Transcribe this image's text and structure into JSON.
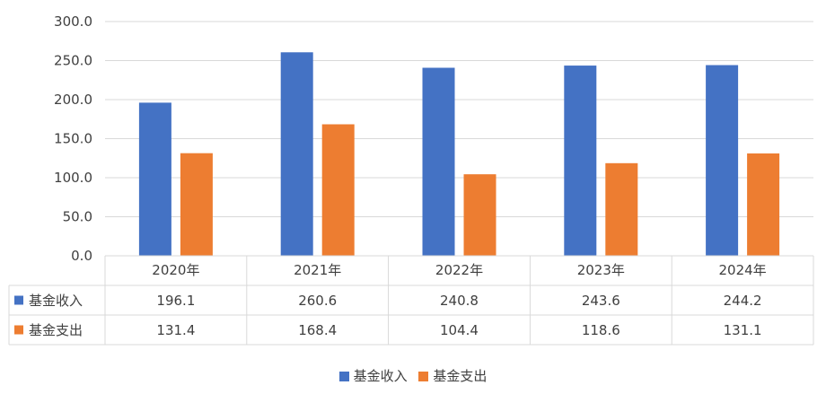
{
  "chart_data": {
    "type": "bar",
    "categories": [
      "2020年",
      "2021年",
      "2022年",
      "2023年",
      "2024年"
    ],
    "series": [
      {
        "name": "基金收入",
        "values": [
          196.1,
          260.6,
          240.8,
          243.6,
          244.2
        ],
        "color": "#4472C4"
      },
      {
        "name": "基金支出",
        "values": [
          131.4,
          168.4,
          104.4,
          118.6,
          131.1
        ],
        "color": "#ED7D31"
      }
    ],
    "ylim": [
      0,
      300
    ],
    "yticks": [
      "0.0",
      "50.0",
      "100.0",
      "150.0",
      "200.0",
      "250.0",
      "300.0"
    ],
    "grid": true,
    "data_table": true,
    "legend_position": "bottom"
  }
}
